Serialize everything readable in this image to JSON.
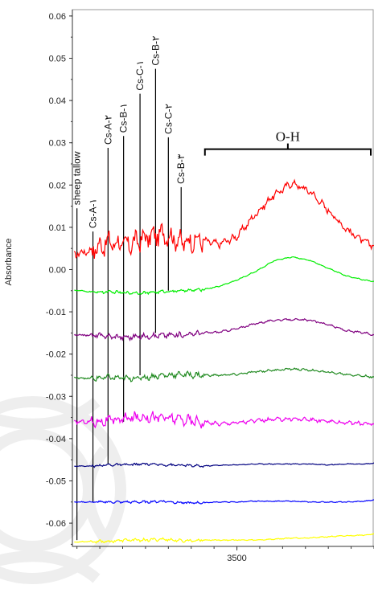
{
  "chart_data": {
    "type": "line",
    "title": "",
    "xlabel": "",
    "ylabel": "Absorbance",
    "x_ticks": [
      3500
    ],
    "y_ticks": [
      0.06,
      0.05,
      0.04,
      0.03,
      0.02,
      0.01,
      0.0,
      -0.01,
      -0.02,
      -0.03,
      -0.04,
      -0.05,
      -0.06
    ],
    "y_tick_labels": [
      "0.06",
      "0.05",
      "0.04",
      "0.03",
      "0.02",
      "0.01",
      "0.00",
      "-0.01",
      "-0.02",
      "-0.03",
      "-0.04",
      "-0.05",
      "-0.06"
    ],
    "x_tick_labels": [
      "3500"
    ],
    "xlim": [
      3140,
      3800
    ],
    "ylim": [
      -0.0655,
      0.0615
    ],
    "grid": false,
    "legend": "none",
    "x": [
      3140,
      3180,
      3220,
      3260,
      3300,
      3340,
      3380,
      3420,
      3460,
      3500,
      3540,
      3580,
      3620,
      3660,
      3700,
      3740,
      3780,
      3800
    ],
    "series": [
      {
        "color": "#ff0000",
        "values": [
          0.0035,
          0.0045,
          0.0065,
          0.0058,
          0.0075,
          0.0085,
          0.0065,
          0.007,
          0.006,
          0.0078,
          0.013,
          0.0175,
          0.0205,
          0.0185,
          0.014,
          0.0095,
          0.0065,
          0.0058
        ],
        "noise": 0.0035
      },
      {
        "color": "#00ee00",
        "values": [
          -0.0048,
          -0.0053,
          -0.0053,
          -0.0055,
          -0.0055,
          -0.0052,
          -0.005,
          -0.0048,
          -0.004,
          -0.0025,
          -0.0005,
          0.002,
          0.003,
          0.0022,
          0.0003,
          -0.0015,
          -0.0025,
          -0.0028
        ],
        "noise": 0.0005
      },
      {
        "color": "#800080",
        "values": [
          -0.0155,
          -0.0155,
          -0.0158,
          -0.016,
          -0.0158,
          -0.0155,
          -0.0155,
          -0.015,
          -0.0148,
          -0.014,
          -0.0128,
          -0.012,
          -0.0118,
          -0.012,
          -0.013,
          -0.0145,
          -0.015,
          -0.0155
        ],
        "noise": 0.0009
      },
      {
        "color": "#228b22",
        "values": [
          -0.0255,
          -0.0258,
          -0.0255,
          -0.0258,
          -0.0255,
          -0.025,
          -0.0248,
          -0.025,
          -0.025,
          -0.0248,
          -0.0242,
          -0.0238,
          -0.0235,
          -0.0238,
          -0.0243,
          -0.0248,
          -0.0252,
          -0.0255
        ],
        "noise": 0.001
      },
      {
        "color": "#ee00ee",
        "values": [
          -0.036,
          -0.036,
          -0.0358,
          -0.0352,
          -0.0348,
          -0.035,
          -0.0355,
          -0.036,
          -0.0365,
          -0.0362,
          -0.0358,
          -0.0355,
          -0.0353,
          -0.0355,
          -0.036,
          -0.0362,
          -0.0365,
          -0.0365
        ],
        "noise": 0.0018
      },
      {
        "color": "#000080",
        "values": [
          -0.0465,
          -0.0465,
          -0.0462,
          -0.0462,
          -0.046,
          -0.0462,
          -0.0463,
          -0.0465,
          -0.0463,
          -0.0462,
          -0.046,
          -0.046,
          -0.046,
          -0.046,
          -0.0462,
          -0.046,
          -0.046,
          -0.0458
        ],
        "noise": 0.0004
      },
      {
        "color": "#0000ff",
        "values": [
          -0.055,
          -0.055,
          -0.055,
          -0.055,
          -0.055,
          -0.0548,
          -0.0552,
          -0.0552,
          -0.055,
          -0.055,
          -0.0548,
          -0.0548,
          -0.0548,
          -0.055,
          -0.055,
          -0.055,
          -0.0548,
          -0.0545
        ],
        "noise": 0.0004
      },
      {
        "color": "#ffff00",
        "values": [
          -0.0645,
          -0.0643,
          -0.0643,
          -0.064,
          -0.064,
          -0.0638,
          -0.0642,
          -0.064,
          -0.064,
          -0.064,
          -0.064,
          -0.0638,
          -0.0635,
          -0.0635,
          -0.0632,
          -0.063,
          -0.0628,
          -0.0625
        ],
        "noise": 0.0005
      }
    ],
    "annotations": [
      {
        "text": "sheep tallow",
        "x": 3150,
        "y_top": 0.0145,
        "y_bottom": -0.064
      },
      {
        "text": "Cs-A-۱",
        "x": 3185,
        "y_top": 0.009,
        "y_bottom": -0.055
      },
      {
        "text": "Cs-A-۲",
        "x": 3218,
        "y_top": 0.0288,
        "y_bottom": -0.046
      },
      {
        "text": "Cs-B-۱",
        "x": 3252,
        "y_top": 0.0316,
        "y_bottom": -0.036
      },
      {
        "text": "Cs-C-۱",
        "x": 3288,
        "y_top": 0.0416,
        "y_bottom": -0.025
      },
      {
        "text": "Cs-B-۲",
        "x": 3322,
        "y_top": 0.0475,
        "y_bottom": -0.015
      },
      {
        "text": "Cs-C-۲",
        "x": 3350,
        "y_top": 0.0313,
        "y_bottom": -0.005
      },
      {
        "text": "Cs-B-۳",
        "x": 3378,
        "y_top": 0.0195,
        "y_bottom": 0.008
      }
    ],
    "bracket": {
      "text": "O-H",
      "x_start": 3430,
      "x_end": 3800,
      "y": 0.0285
    }
  }
}
